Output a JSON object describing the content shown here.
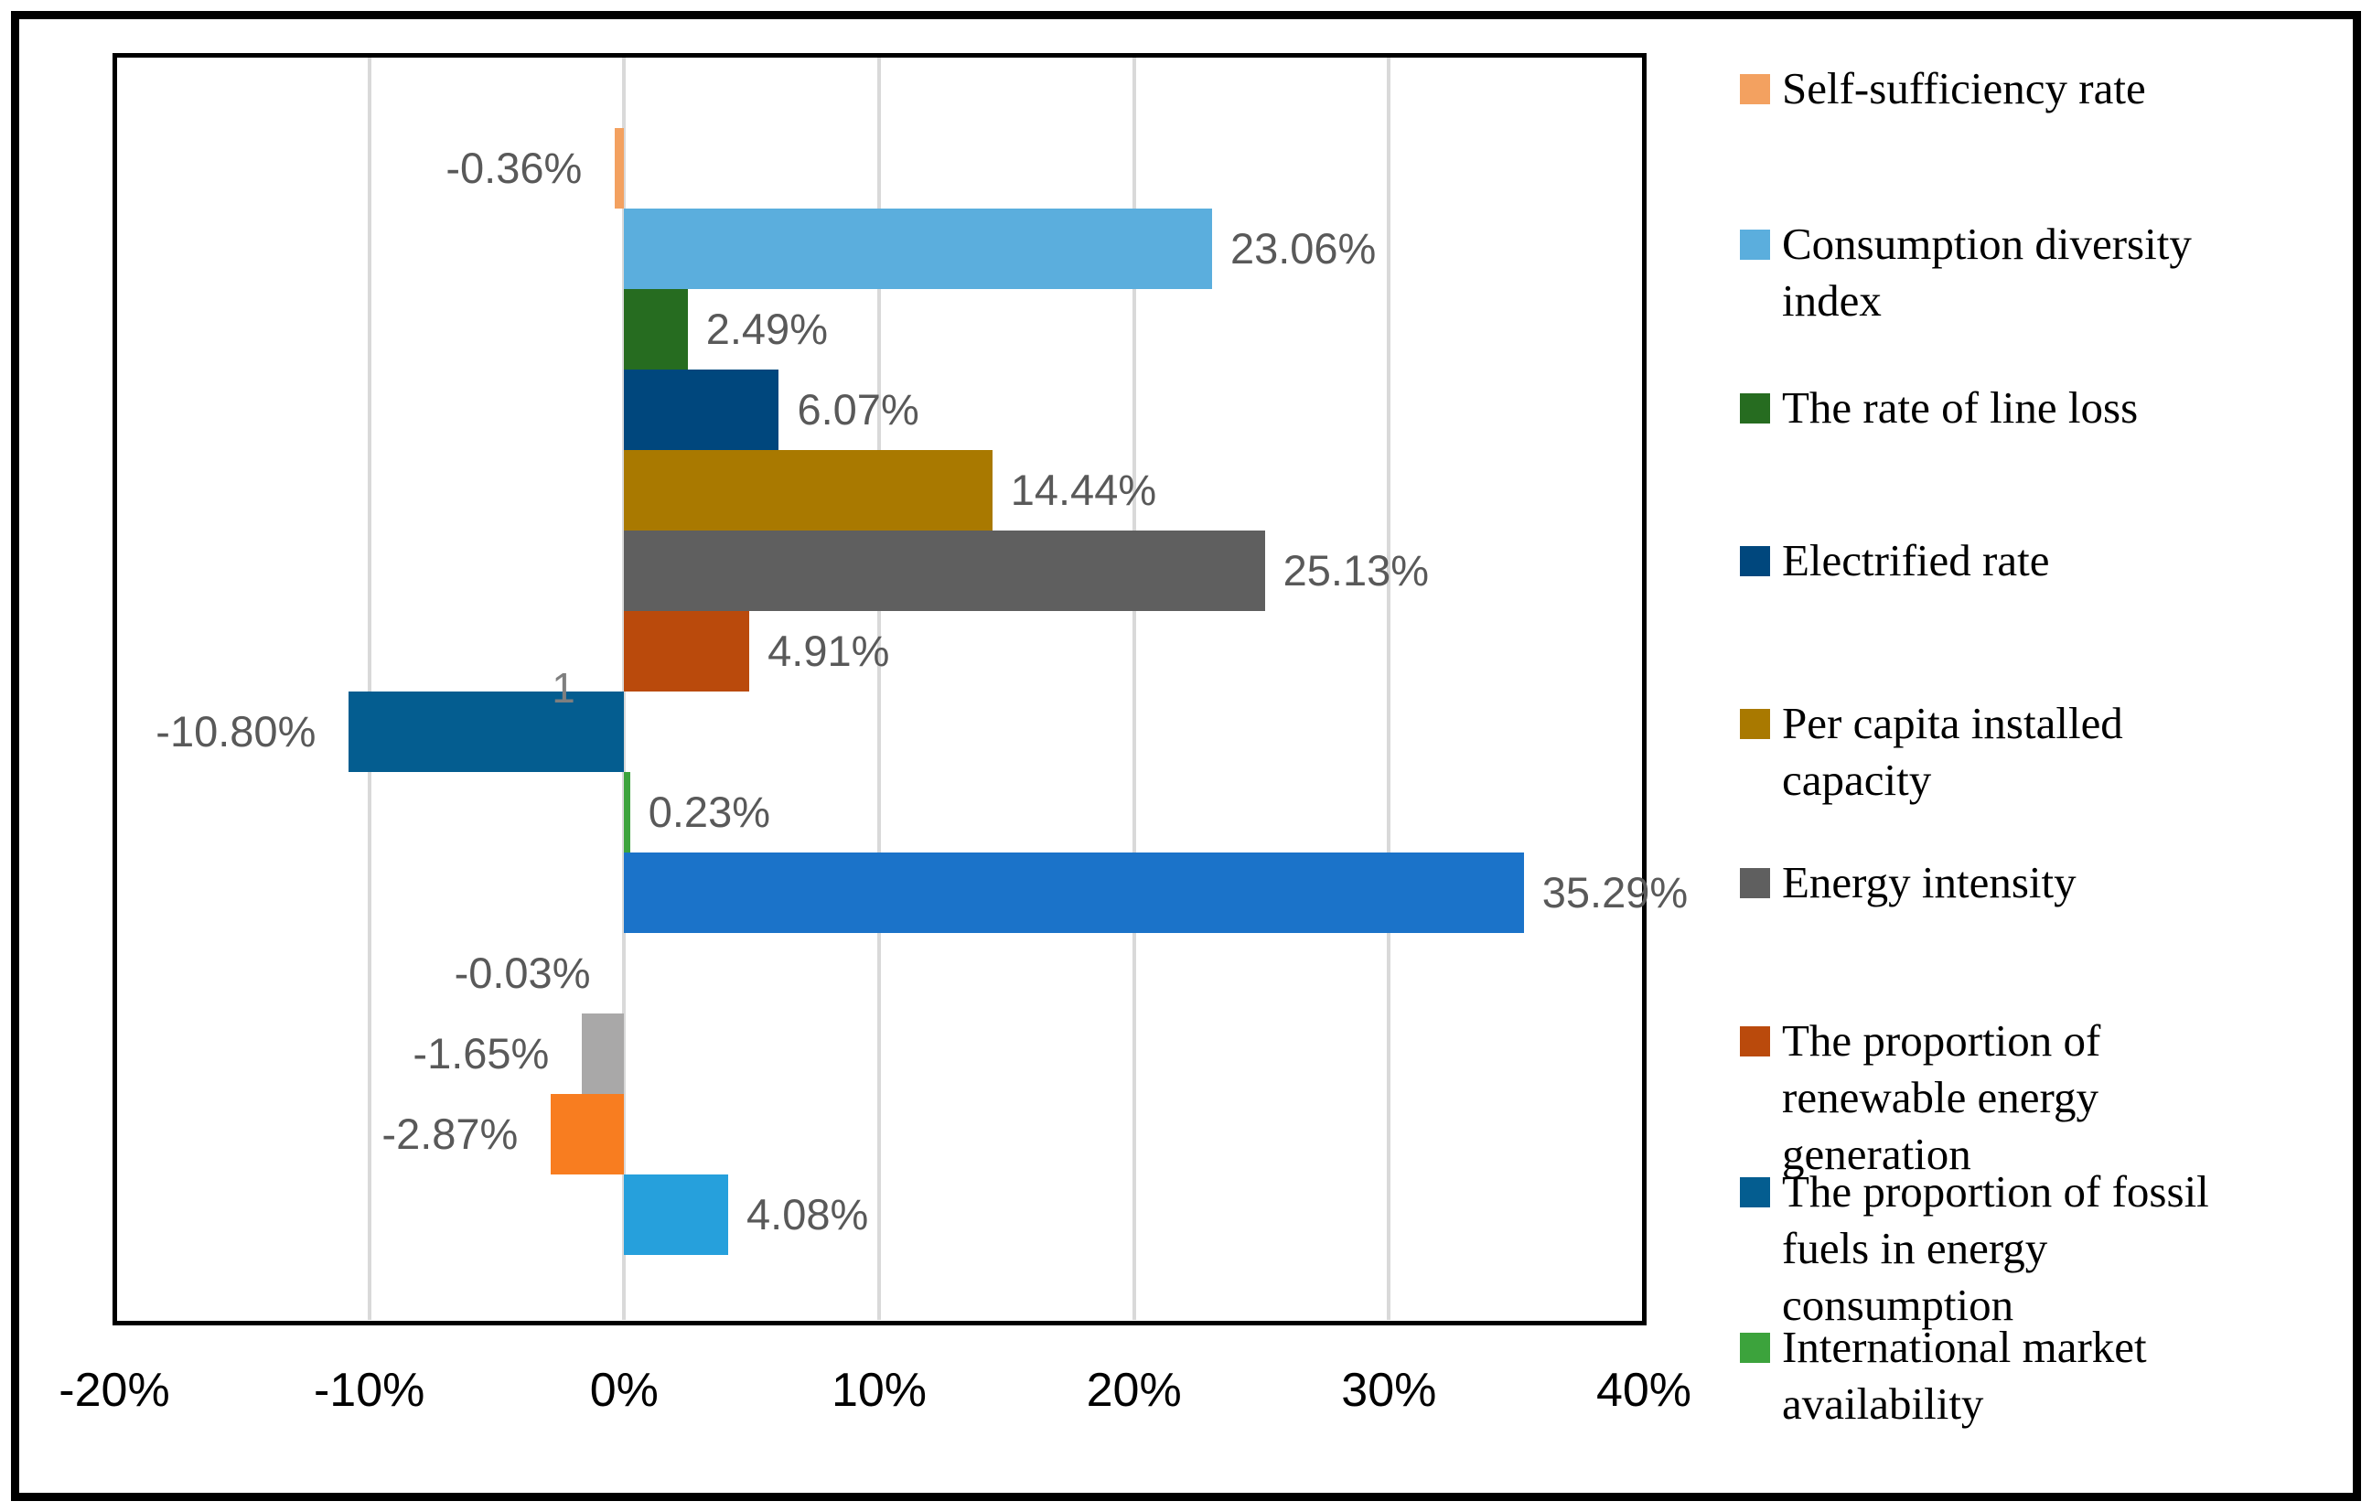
{
  "chart_data": {
    "type": "bar",
    "orientation": "horizontal",
    "title": "",
    "xlabel": "",
    "ylabel": "",
    "categories": [
      "1"
    ],
    "category_label": "1",
    "x_axis": {
      "min": -20,
      "max": 40,
      "tick_step": 10,
      "tick_labels": [
        "-20%",
        "-10%",
        "0%",
        "10%",
        "20%",
        "30%",
        "40%"
      ],
      "grid": true,
      "gridline_color": "#D9D9D9"
    },
    "value_label_color": "#595959",
    "legend_position": "right",
    "series": [
      {
        "name": "Self-sufficiency rate",
        "value": -0.36,
        "label": "-0.36%",
        "color": "#F3A160"
      },
      {
        "name": "Consumption diversity index",
        "value": 23.06,
        "label": "23.06%",
        "color": "#5BAEDD"
      },
      {
        "name": "The rate of line loss",
        "value": 2.49,
        "label": "2.49%",
        "color": "#266C20"
      },
      {
        "name": "Electrified rate",
        "value": 6.07,
        "label": "6.07%",
        "color": "#00477D"
      },
      {
        "name": "Per capita installed capacity",
        "value": 14.44,
        "label": "14.44%",
        "color": "#A97900"
      },
      {
        "name": "Energy intensity",
        "value": 25.13,
        "label": "25.13%",
        "color": "#5F5F5F"
      },
      {
        "name": "The proportion of renewable energy generation",
        "value": 4.91,
        "label": "4.91%",
        "color": "#BA4A0C"
      },
      {
        "name": "The proportion of fossil fuels in energy consumption",
        "value": -10.8,
        "label": "-10.80%",
        "color": "#045D90"
      },
      {
        "name": "International market availability",
        "value": 0.23,
        "label": "0.23%",
        "color": "#3CA33C"
      },
      {
        "name": "",
        "value": 35.29,
        "label": "35.29%",
        "color": "#1B73C9"
      },
      {
        "name": "",
        "value": -0.03,
        "label": "-0.03%",
        "color": null
      },
      {
        "name": "",
        "value": -1.65,
        "label": "-1.65%",
        "color": "#A9A8A8"
      },
      {
        "name": "",
        "value": -2.87,
        "label": "-2.87%",
        "color": "#F87D20"
      },
      {
        "name": "",
        "value": 4.08,
        "label": "4.08%",
        "color": "#26A0DC"
      }
    ]
  },
  "legend": {
    "items": [
      {
        "label": "Self-sufficiency rate",
        "lines": [
          "Self-sufficiency rate"
        ],
        "color": "#F3A160"
      },
      {
        "label": "Consumption diversity index",
        "lines": [
          "Consumption diversity",
          "index"
        ],
        "color": "#5BAEDD"
      },
      {
        "label": "The rate of line loss",
        "lines": [
          "The rate of line loss"
        ],
        "color": "#266C20"
      },
      {
        "label": "Electrified rate",
        "lines": [
          "Electrified rate"
        ],
        "color": "#00477D"
      },
      {
        "label": "Per capita installed capacity",
        "lines": [
          "Per capita installed",
          "capacity"
        ],
        "color": "#A97900"
      },
      {
        "label": "Energy intensity",
        "lines": [
          "Energy intensity"
        ],
        "color": "#5F5F5F"
      },
      {
        "label": "The proportion of renewable energy generation",
        "lines": [
          "The proportion of",
          "renewable energy",
          "generation"
        ],
        "color": "#BA4A0C"
      },
      {
        "label": "The proportion of fossil fuels in energy consumption",
        "lines": [
          "The proportion of fossil",
          "fuels in energy",
          "consumption"
        ],
        "color": "#045D90"
      },
      {
        "label": "International market availability",
        "lines": [
          "International market",
          "availability"
        ],
        "color": "#3CA33C"
      }
    ]
  }
}
